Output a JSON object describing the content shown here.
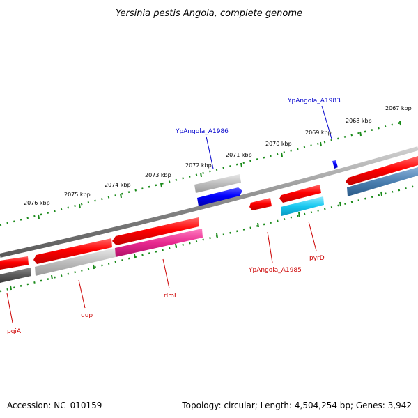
{
  "header": {
    "title": "Yersinia pestis Angola, complete genome"
  },
  "footer": {
    "accession": "Accession: NC_010159",
    "summary": "Topology: circular; Length: 4,504,254 bp; Genes: 3,942"
  },
  "scale": {
    "ticks": [
      "2076 kbp",
      "2075 kbp",
      "2074 kbp",
      "2073 kbp",
      "2072 kbp",
      "2071 kbp",
      "2070 kbp",
      "2069 kbp",
      "2068 kbp",
      "2067 kbp"
    ]
  },
  "genes": [
    {
      "label": "pqiA",
      "color": "#ff0000"
    },
    {
      "label": "uup",
      "color": "#ff0000"
    },
    {
      "label": "rlmL",
      "color": "#ff0000"
    },
    {
      "label": "YpAngola_A1985",
      "color": "#ff0000"
    },
    {
      "label": "pyrD",
      "color": "#ff0000"
    },
    {
      "label": "YpAngola_A1986",
      "color": "#0000ff"
    },
    {
      "label": "YpAngola_A1983",
      "color": "#0000ff"
    }
  ],
  "colors": {
    "backbone": "#8a8a8a",
    "tick_marks": "#1a8a1a",
    "forward_cds": "#ff0000",
    "reverse_cds": "#0000ff",
    "cog_gray": "#bdbdbd",
    "cog_dark": "#5a5a5a",
    "cog_magenta": "#e8288f",
    "cog_cyan": "#18c8f0",
    "cog_steel": "#4a7fb0"
  }
}
